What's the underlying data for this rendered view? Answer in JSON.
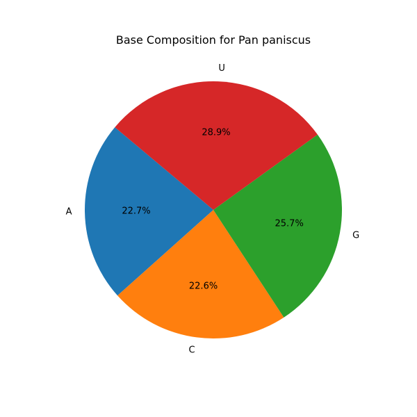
{
  "chart_data": {
    "type": "pie",
    "title": "Base Composition for Pan paniscus",
    "categories": [
      "A",
      "C",
      "G",
      "U"
    ],
    "values": [
      22.7,
      22.6,
      25.7,
      28.9
    ],
    "percent_labels": [
      "22.7%",
      "22.6%",
      "25.7%",
      "28.9%"
    ],
    "colors": [
      "#1f77b4",
      "#ff7f0e",
      "#2ca02c",
      "#d62728"
    ],
    "start_angle_deg": 140,
    "direction": "counterclockwise",
    "legend": "none"
  }
}
